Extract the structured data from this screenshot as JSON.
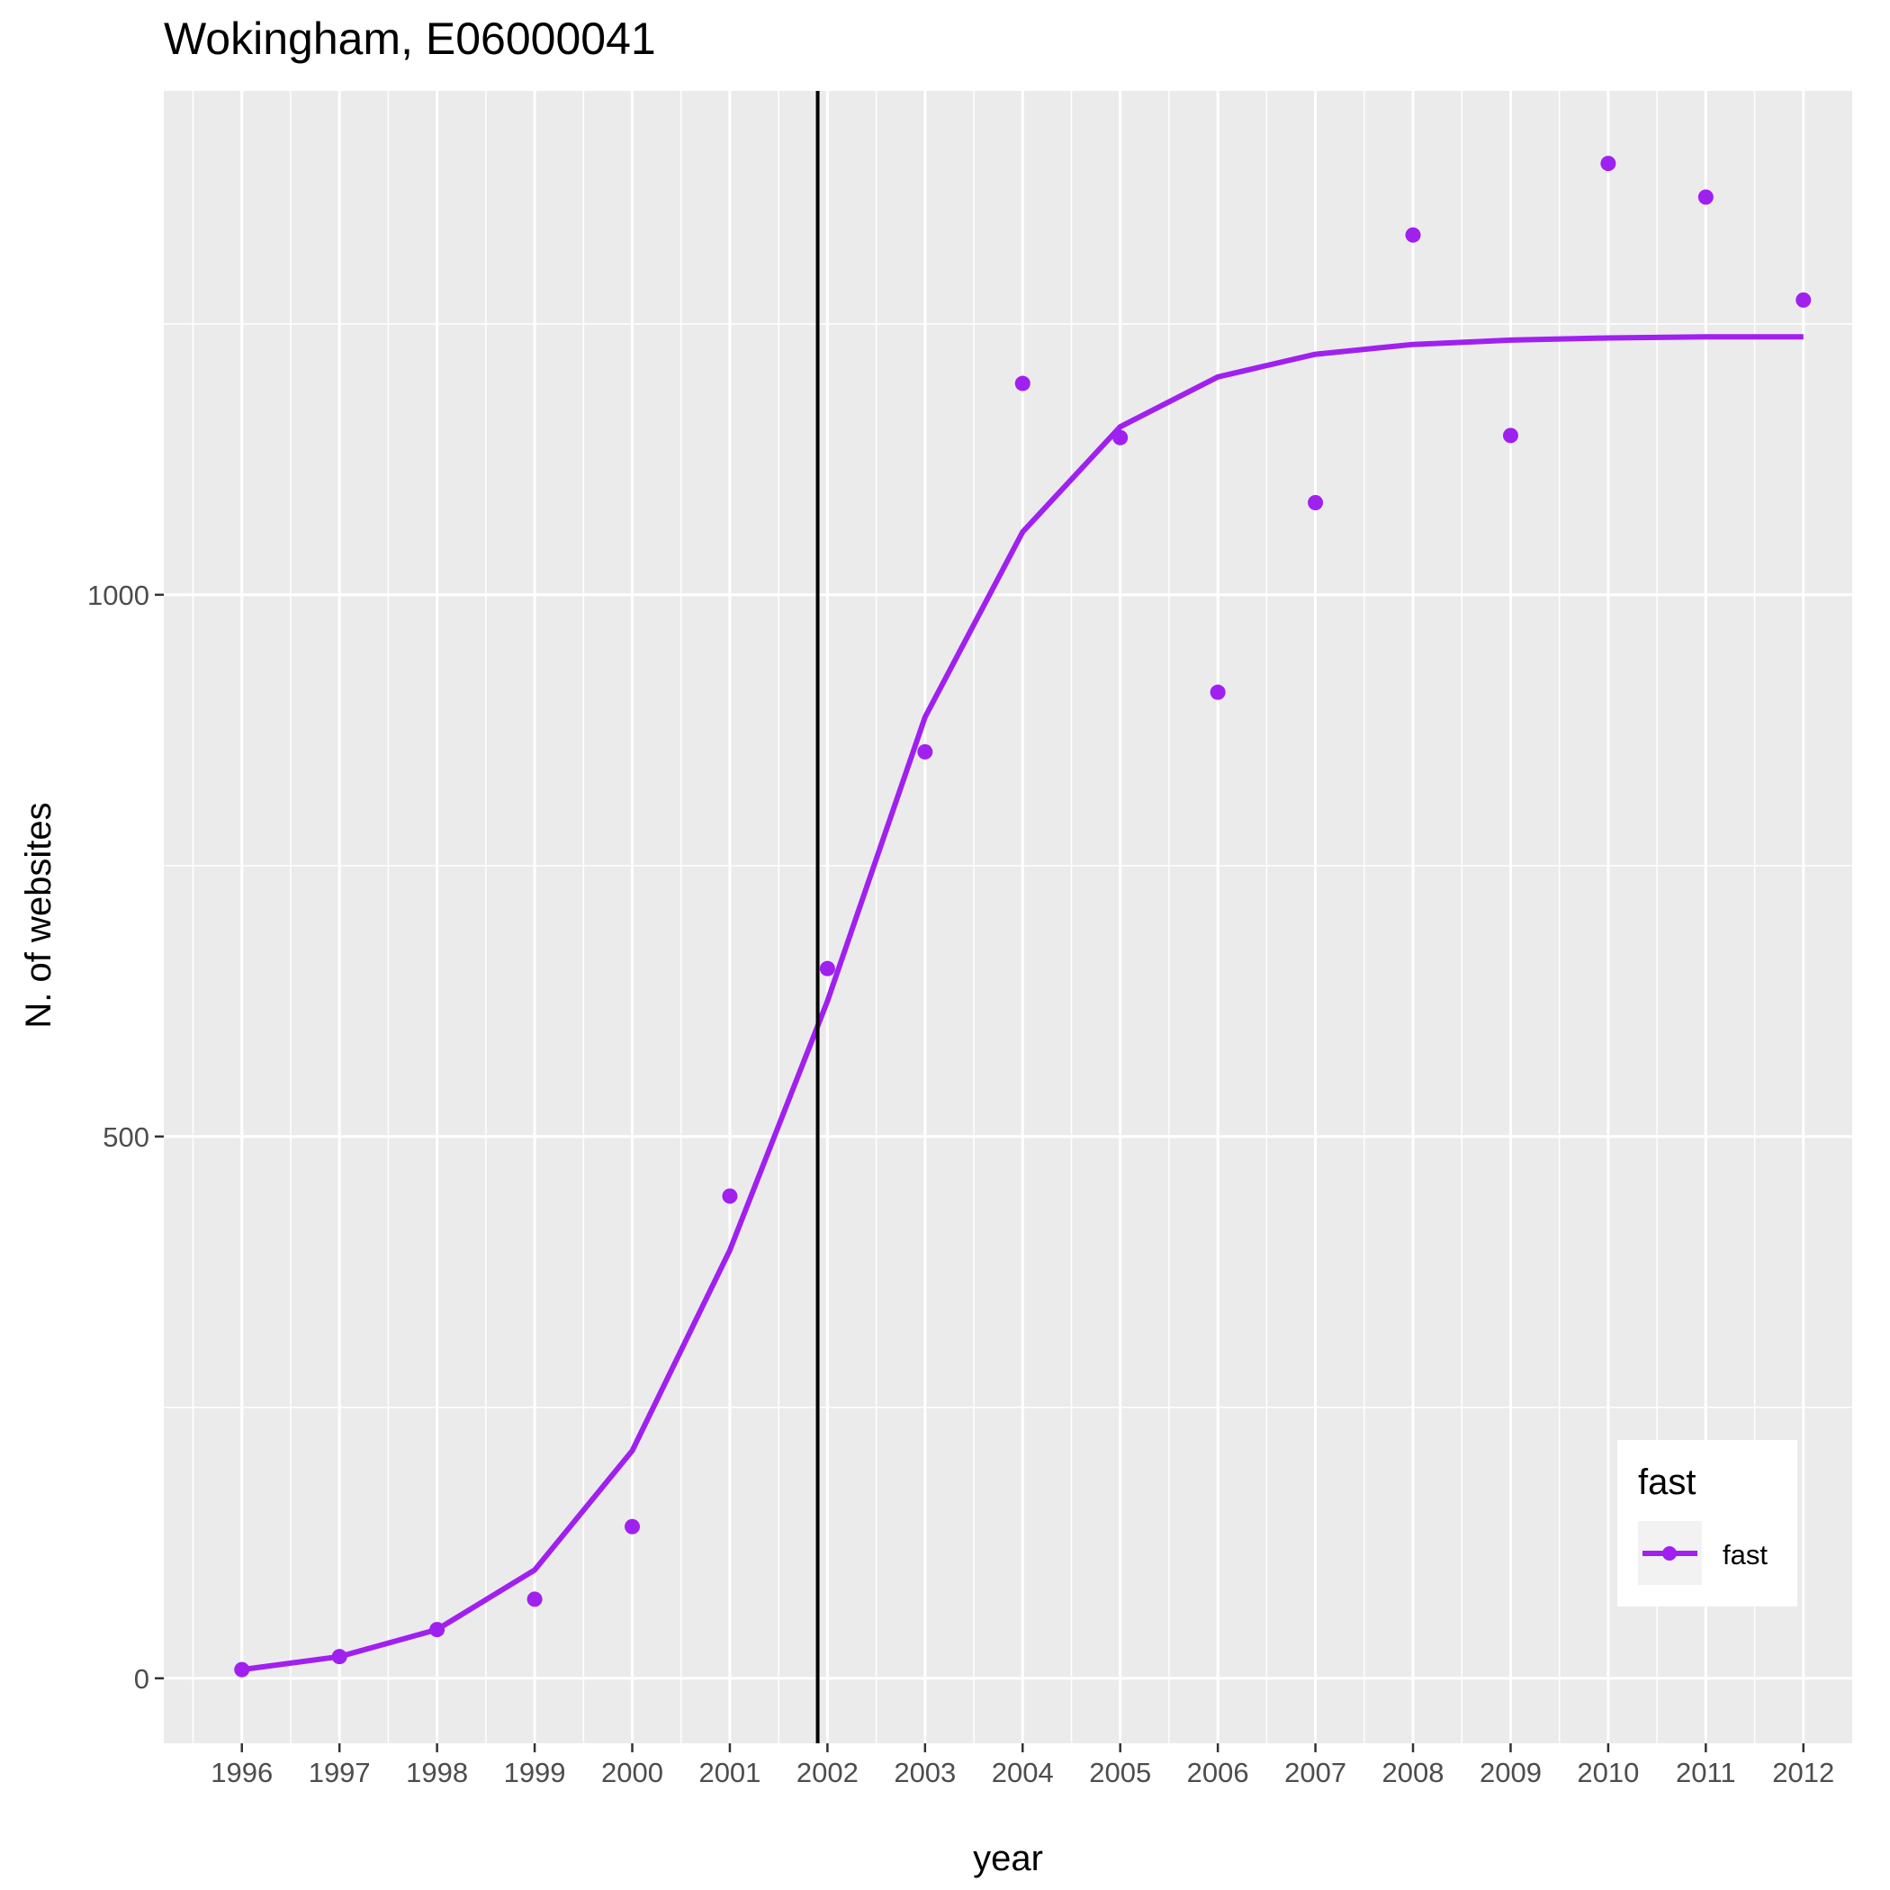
{
  "chart_data": {
    "type": "line",
    "title": "Wokingham, E06000041",
    "xlabel": "year",
    "ylabel": "N. of websites",
    "x": [
      1996,
      1997,
      1998,
      1999,
      2000,
      2001,
      2002,
      2003,
      2004,
      2005,
      2006,
      2007,
      2008,
      2009,
      2010,
      2011,
      2012
    ],
    "x_tick_labels": [
      "1996",
      "1997",
      "1998",
      "1999",
      "2000",
      "2001",
      "2002",
      "2003",
      "2004",
      "2005",
      "2006",
      "2007",
      "2008",
      "2009",
      "2010",
      "2011",
      "2012"
    ],
    "y_ticks": [
      0,
      500,
      1000
    ],
    "y_tick_labels": [
      "0",
      "500",
      "1000"
    ],
    "xlim": [
      1995.2,
      2012.5
    ],
    "ylim": [
      -60,
      1465
    ],
    "grid": true,
    "vline_x": 2001.9,
    "series": [
      {
        "name": "fast",
        "color": "#a020f0",
        "points": [
          8,
          20,
          45,
          73,
          140,
          445,
          655,
          855,
          1195,
          1145,
          910,
          1085,
          1332,
          1147,
          1398,
          1367,
          1272
        ],
        "fitted": [
          8,
          20,
          45,
          100,
          210,
          395,
          625,
          887,
          1058,
          1155,
          1201,
          1222,
          1231,
          1235,
          1237,
          1238,
          1238
        ]
      }
    ],
    "legend": {
      "title": "fast",
      "entries": [
        "fast"
      ],
      "position": "bottom-right inside"
    }
  }
}
